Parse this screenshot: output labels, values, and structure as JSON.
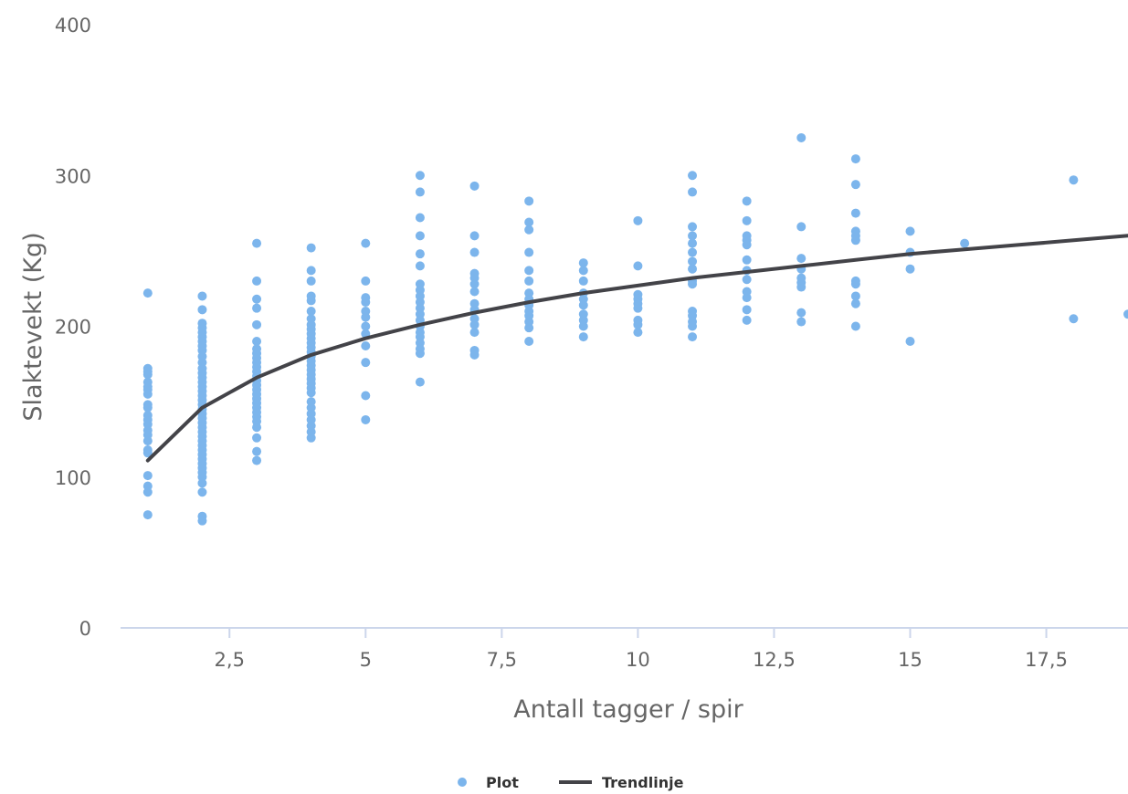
{
  "chart_data": {
    "type": "scatter",
    "title": "",
    "xlabel": "Antall tagger / spir",
    "ylabel": "Slaktevekt (Kg)",
    "xlim": [
      0.5,
      19
    ],
    "ylim": [
      0,
      400
    ],
    "x_ticks": [
      2.5,
      5,
      7.5,
      10,
      12.5,
      15,
      17.5
    ],
    "x_tick_labels": [
      "2,5",
      "5",
      "7,5",
      "10",
      "12,5",
      "15",
      "17,5"
    ],
    "y_ticks": [
      0,
      100,
      200,
      300,
      400
    ],
    "y_tick_labels": [
      "0",
      "100",
      "200",
      "300",
      "400"
    ],
    "grid": false,
    "legend_position": "bottom-center",
    "colors": {
      "scatter": "#7cb5ec",
      "trend": "#434348",
      "axis": "#ccd6eb",
      "text": "#666666"
    },
    "series": [
      {
        "name": "Plot",
        "kind": "scatter",
        "points": [
          [
            1,
            222
          ],
          [
            1,
            172
          ],
          [
            1,
            170
          ],
          [
            1,
            168
          ],
          [
            1,
            163
          ],
          [
            1,
            160
          ],
          [
            1,
            158
          ],
          [
            1,
            155
          ],
          [
            1,
            148
          ],
          [
            1,
            146
          ],
          [
            1,
            141
          ],
          [
            1,
            138
          ],
          [
            1,
            135
          ],
          [
            1,
            131
          ],
          [
            1,
            128
          ],
          [
            1,
            124
          ],
          [
            1,
            118
          ],
          [
            1,
            116
          ],
          [
            1,
            101
          ],
          [
            1,
            94
          ],
          [
            1,
            90
          ],
          [
            1,
            75
          ],
          [
            2,
            220
          ],
          [
            2,
            211
          ],
          [
            2,
            202
          ],
          [
            2,
            199
          ],
          [
            2,
            196
          ],
          [
            2,
            193
          ],
          [
            2,
            190
          ],
          [
            2,
            187
          ],
          [
            2,
            184
          ],
          [
            2,
            180
          ],
          [
            2,
            176
          ],
          [
            2,
            172
          ],
          [
            2,
            169
          ],
          [
            2,
            166
          ],
          [
            2,
            163
          ],
          [
            2,
            160
          ],
          [
            2,
            157
          ],
          [
            2,
            154
          ],
          [
            2,
            151
          ],
          [
            2,
            148
          ],
          [
            2,
            145
          ],
          [
            2,
            142
          ],
          [
            2,
            139
          ],
          [
            2,
            136
          ],
          [
            2,
            133
          ],
          [
            2,
            130
          ],
          [
            2,
            127
          ],
          [
            2,
            124
          ],
          [
            2,
            121
          ],
          [
            2,
            118
          ],
          [
            2,
            115
          ],
          [
            2,
            112
          ],
          [
            2,
            109
          ],
          [
            2,
            106
          ],
          [
            2,
            103
          ],
          [
            2,
            100
          ],
          [
            2,
            96
          ],
          [
            2,
            90
          ],
          [
            2,
            74
          ],
          [
            2,
            71
          ],
          [
            3,
            255
          ],
          [
            3,
            230
          ],
          [
            3,
            218
          ],
          [
            3,
            212
          ],
          [
            3,
            201
          ],
          [
            3,
            190
          ],
          [
            3,
            185
          ],
          [
            3,
            182
          ],
          [
            3,
            179
          ],
          [
            3,
            176
          ],
          [
            3,
            173
          ],
          [
            3,
            170
          ],
          [
            3,
            167
          ],
          [
            3,
            164
          ],
          [
            3,
            161
          ],
          [
            3,
            158
          ],
          [
            3,
            155
          ],
          [
            3,
            152
          ],
          [
            3,
            149
          ],
          [
            3,
            146
          ],
          [
            3,
            143
          ],
          [
            3,
            140
          ],
          [
            3,
            137
          ],
          [
            3,
            133
          ],
          [
            3,
            126
          ],
          [
            3,
            117
          ],
          [
            3,
            111
          ],
          [
            4,
            252
          ],
          [
            4,
            237
          ],
          [
            4,
            230
          ],
          [
            4,
            220
          ],
          [
            4,
            217
          ],
          [
            4,
            210
          ],
          [
            4,
            205
          ],
          [
            4,
            201
          ],
          [
            4,
            198
          ],
          [
            4,
            195
          ],
          [
            4,
            192
          ],
          [
            4,
            189
          ],
          [
            4,
            186
          ],
          [
            4,
            183
          ],
          [
            4,
            180
          ],
          [
            4,
            177
          ],
          [
            4,
            174
          ],
          [
            4,
            171
          ],
          [
            4,
            168
          ],
          [
            4,
            165
          ],
          [
            4,
            162
          ],
          [
            4,
            159
          ],
          [
            4,
            156
          ],
          [
            4,
            150
          ],
          [
            4,
            146
          ],
          [
            4,
            142
          ],
          [
            4,
            138
          ],
          [
            4,
            134
          ],
          [
            4,
            130
          ],
          [
            4,
            126
          ],
          [
            5,
            255
          ],
          [
            5,
            230
          ],
          [
            5,
            219
          ],
          [
            5,
            216
          ],
          [
            5,
            210
          ],
          [
            5,
            206
          ],
          [
            5,
            200
          ],
          [
            5,
            195
          ],
          [
            5,
            187
          ],
          [
            5,
            176
          ],
          [
            5,
            154
          ],
          [
            5,
            138
          ],
          [
            6,
            300
          ],
          [
            6,
            289
          ],
          [
            6,
            272
          ],
          [
            6,
            260
          ],
          [
            6,
            248
          ],
          [
            6,
            240
          ],
          [
            6,
            228
          ],
          [
            6,
            224
          ],
          [
            6,
            220
          ],
          [
            6,
            216
          ],
          [
            6,
            212
          ],
          [
            6,
            208
          ],
          [
            6,
            204
          ],
          [
            6,
            200
          ],
          [
            6,
            196
          ],
          [
            6,
            193
          ],
          [
            6,
            189
          ],
          [
            6,
            185
          ],
          [
            6,
            182
          ],
          [
            6,
            163
          ],
          [
            7,
            293
          ],
          [
            7,
            260
          ],
          [
            7,
            249
          ],
          [
            7,
            235
          ],
          [
            7,
            232
          ],
          [
            7,
            228
          ],
          [
            7,
            223
          ],
          [
            7,
            215
          ],
          [
            7,
            211
          ],
          [
            7,
            205
          ],
          [
            7,
            201
          ],
          [
            7,
            196
          ],
          [
            7,
            184
          ],
          [
            7,
            181
          ],
          [
            8,
            283
          ],
          [
            8,
            269
          ],
          [
            8,
            264
          ],
          [
            8,
            249
          ],
          [
            8,
            237
          ],
          [
            8,
            230
          ],
          [
            8,
            222
          ],
          [
            8,
            218
          ],
          [
            8,
            214
          ],
          [
            8,
            210
          ],
          [
            8,
            207
          ],
          [
            8,
            203
          ],
          [
            8,
            199
          ],
          [
            8,
            190
          ],
          [
            9,
            242
          ],
          [
            9,
            237
          ],
          [
            9,
            230
          ],
          [
            9,
            222
          ],
          [
            9,
            218
          ],
          [
            9,
            214
          ],
          [
            9,
            208
          ],
          [
            9,
            204
          ],
          [
            9,
            200
          ],
          [
            9,
            193
          ],
          [
            10,
            270
          ],
          [
            10,
            240
          ],
          [
            10,
            221
          ],
          [
            10,
            218
          ],
          [
            10,
            215
          ],
          [
            10,
            212
          ],
          [
            10,
            204
          ],
          [
            10,
            201
          ],
          [
            10,
            196
          ],
          [
            11,
            300
          ],
          [
            11,
            289
          ],
          [
            11,
            266
          ],
          [
            11,
            260
          ],
          [
            11,
            255
          ],
          [
            11,
            249
          ],
          [
            11,
            243
          ],
          [
            11,
            238
          ],
          [
            11,
            230
          ],
          [
            11,
            228
          ],
          [
            11,
            210
          ],
          [
            11,
            207
          ],
          [
            11,
            203
          ],
          [
            11,
            200
          ],
          [
            11,
            193
          ],
          [
            12,
            283
          ],
          [
            12,
            270
          ],
          [
            12,
            260
          ],
          [
            12,
            257
          ],
          [
            12,
            254
          ],
          [
            12,
            244
          ],
          [
            12,
            237
          ],
          [
            12,
            231
          ],
          [
            12,
            223
          ],
          [
            12,
            219
          ],
          [
            12,
            211
          ],
          [
            12,
            204
          ],
          [
            13,
            325
          ],
          [
            13,
            266
          ],
          [
            13,
            245
          ],
          [
            13,
            238
          ],
          [
            13,
            232
          ],
          [
            13,
            229
          ],
          [
            13,
            226
          ],
          [
            13,
            209
          ],
          [
            13,
            203
          ],
          [
            14,
            311
          ],
          [
            14,
            294
          ],
          [
            14,
            275
          ],
          [
            14,
            263
          ],
          [
            14,
            260
          ],
          [
            14,
            257
          ],
          [
            14,
            230
          ],
          [
            14,
            228
          ],
          [
            14,
            220
          ],
          [
            14,
            215
          ],
          [
            14,
            200
          ],
          [
            15,
            263
          ],
          [
            15,
            249
          ],
          [
            15,
            238
          ],
          [
            15,
            190
          ],
          [
            16,
            255
          ],
          [
            18,
            297
          ],
          [
            18,
            205
          ],
          [
            19,
            208
          ]
        ]
      },
      {
        "name": "Trendlinje",
        "kind": "line",
        "points": [
          [
            1,
            111
          ],
          [
            2,
            146
          ],
          [
            3,
            166
          ],
          [
            4,
            181
          ],
          [
            5,
            192
          ],
          [
            6,
            201
          ],
          [
            7,
            209
          ],
          [
            8,
            216
          ],
          [
            9,
            222
          ],
          [
            10,
            227
          ],
          [
            11,
            232
          ],
          [
            12,
            236
          ],
          [
            13,
            240
          ],
          [
            14,
            244
          ],
          [
            15,
            248
          ],
          [
            16,
            251
          ],
          [
            17,
            254
          ],
          [
            18,
            257
          ],
          [
            19,
            260
          ]
        ]
      }
    ]
  }
}
